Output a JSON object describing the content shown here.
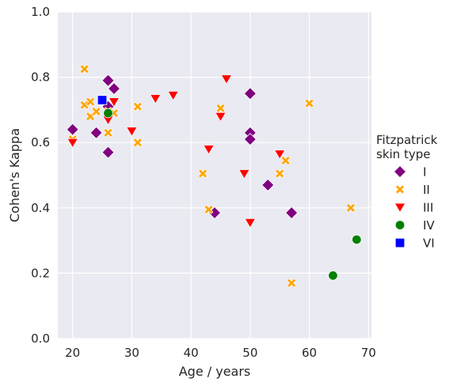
{
  "chart_data": {
    "type": "scatter",
    "xlabel": "Age / years",
    "ylabel": "Cohen's Kappa",
    "xlim": [
      17.5,
      70.5
    ],
    "ylim": [
      0.0,
      1.0
    ],
    "xticks": [
      "20",
      "30",
      "40",
      "50",
      "60",
      "70"
    ],
    "xtick_values": [
      20,
      30,
      40,
      50,
      60,
      70
    ],
    "yticks": [
      "0.0",
      "0.2",
      "0.4",
      "0.6",
      "0.8",
      "1.0"
    ],
    "ytick_values": [
      0.0,
      0.2,
      0.4,
      0.6,
      0.8,
      1.0
    ],
    "grid": true,
    "background": "#eaeaf2",
    "legend": {
      "title_line1": "Fitzpatrick",
      "title_line2": "skin type",
      "placement": "right"
    },
    "series": [
      {
        "name": "I",
        "marker": "diamond",
        "color": "#800080",
        "points": [
          [
            20,
            0.64
          ],
          [
            24,
            0.63
          ],
          [
            26,
            0.79
          ],
          [
            26,
            0.71
          ],
          [
            26,
            0.57
          ],
          [
            27,
            0.765
          ],
          [
            44,
            0.385
          ],
          [
            50,
            0.75
          ],
          [
            50,
            0.63
          ],
          [
            50,
            0.61
          ],
          [
            53,
            0.47
          ],
          [
            57,
            0.385
          ]
        ]
      },
      {
        "name": "II",
        "marker": "x",
        "color": "#ffa500",
        "points": [
          [
            20,
            0.61
          ],
          [
            22,
            0.825
          ],
          [
            22,
            0.715
          ],
          [
            23,
            0.725
          ],
          [
            23,
            0.68
          ],
          [
            24,
            0.695
          ],
          [
            26,
            0.695
          ],
          [
            26,
            0.63
          ],
          [
            27,
            0.69
          ],
          [
            31,
            0.71
          ],
          [
            31,
            0.6
          ],
          [
            42,
            0.505
          ],
          [
            43,
            0.395
          ],
          [
            45,
            0.705
          ],
          [
            55,
            0.505
          ],
          [
            56,
            0.545
          ],
          [
            57,
            0.17
          ],
          [
            60,
            0.72
          ],
          [
            67,
            0.4
          ]
        ]
      },
      {
        "name": "III",
        "marker": "triangle-down",
        "color": "#ff0000",
        "points": [
          [
            20,
            0.6
          ],
          [
            26,
            0.67
          ],
          [
            27,
            0.725
          ],
          [
            30,
            0.635
          ],
          [
            34,
            0.735
          ],
          [
            37,
            0.745
          ],
          [
            43,
            0.58
          ],
          [
            45,
            0.68
          ],
          [
            46,
            0.795
          ],
          [
            49,
            0.505
          ],
          [
            50,
            0.355
          ],
          [
            55,
            0.565
          ]
        ]
      },
      {
        "name": "IV",
        "marker": "circle",
        "color": "#008000",
        "points": [
          [
            26,
            0.69
          ],
          [
            64,
            0.193
          ],
          [
            68,
            0.303
          ]
        ]
      },
      {
        "name": "VI",
        "marker": "square",
        "color": "#0000ff",
        "points": [
          [
            25,
            0.73
          ]
        ]
      }
    ]
  }
}
